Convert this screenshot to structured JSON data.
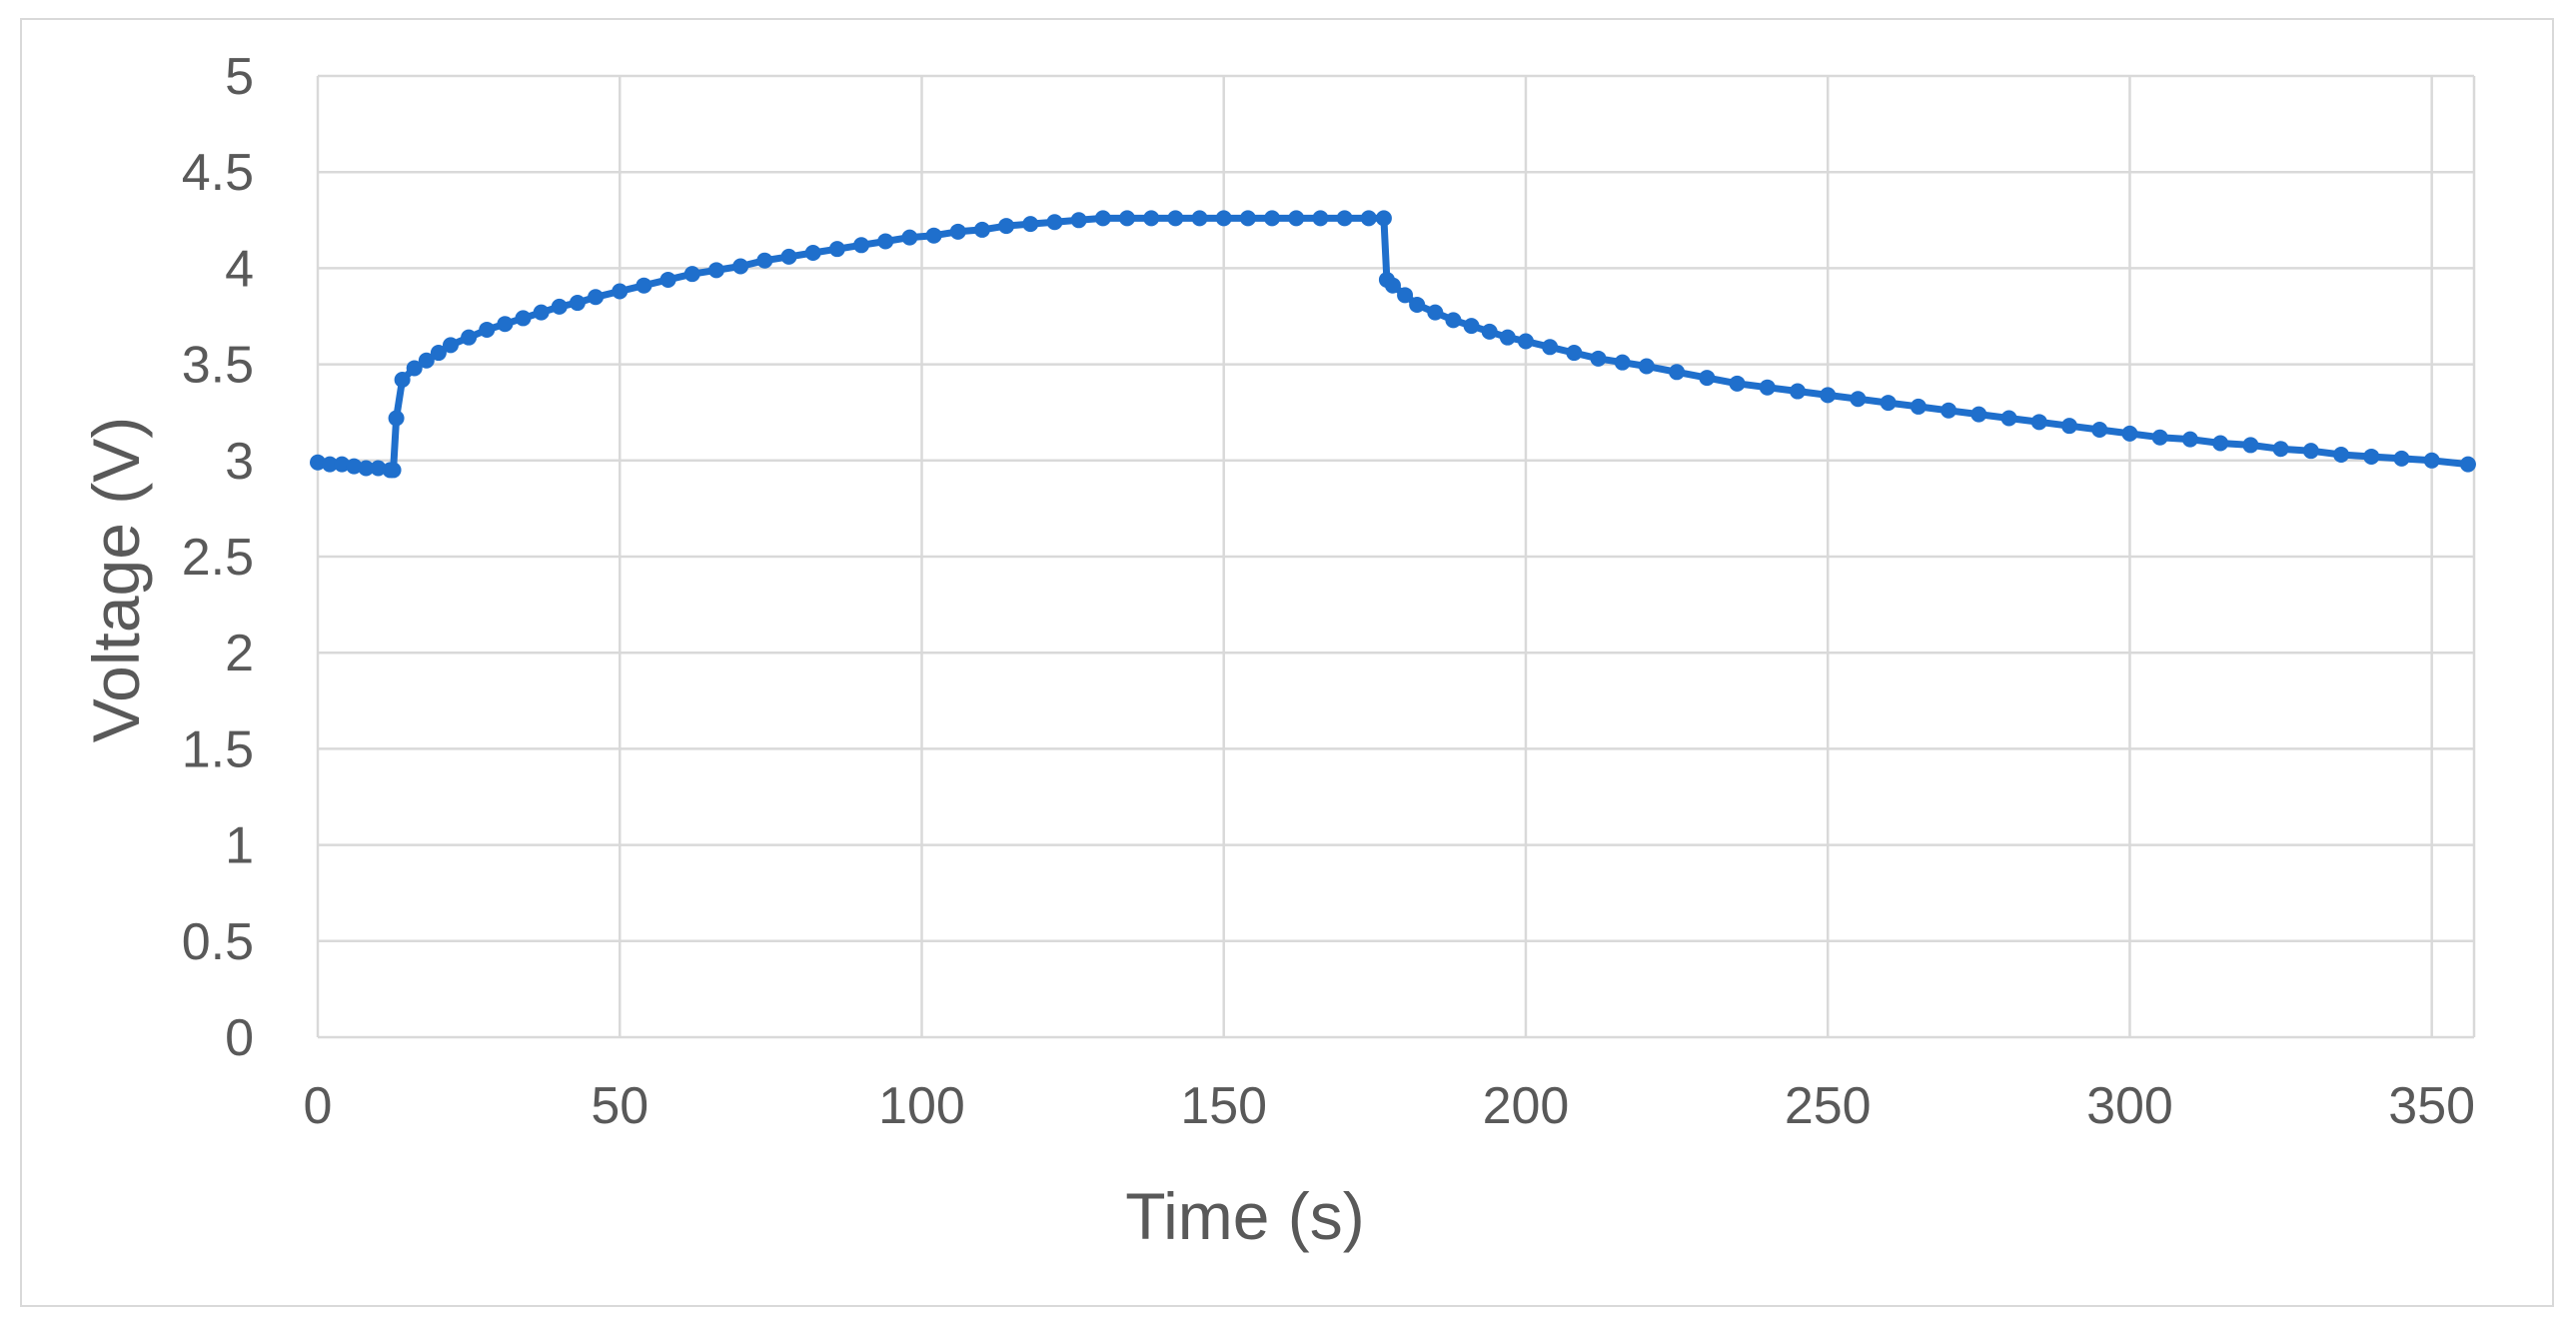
{
  "chart_data": {
    "type": "line",
    "markers": true,
    "xlabel": "Time (s)",
    "ylabel": "Voltage (V)",
    "xlim": [
      0,
      357
    ],
    "ylim": [
      0,
      5
    ],
    "xticks": [
      0,
      50,
      100,
      150,
      200,
      250,
      300,
      350
    ],
    "yticks": [
      0,
      0.5,
      1,
      1.5,
      2,
      2.5,
      3,
      3.5,
      4,
      4.5,
      5
    ],
    "grid": "both",
    "legend": "none",
    "series": [
      {
        "color": "#1f6fcc",
        "x": [
          0,
          2,
          4,
          6,
          8,
          10,
          12,
          12.5,
          13,
          14,
          16,
          18,
          20,
          22,
          25,
          28,
          31,
          34,
          37,
          40,
          43,
          46,
          50,
          54,
          58,
          62,
          66,
          70,
          74,
          78,
          82,
          86,
          90,
          94,
          98,
          102,
          106,
          110,
          114,
          118,
          122,
          126,
          130,
          134,
          138,
          142,
          146,
          150,
          154,
          158,
          162,
          166,
          170,
          174,
          176.5,
          177,
          178,
          180,
          182,
          185,
          188,
          191,
          194,
          197,
          200,
          204,
          208,
          212,
          216,
          220,
          225,
          230,
          235,
          240,
          245,
          250,
          255,
          260,
          265,
          270,
          275,
          280,
          285,
          290,
          295,
          300,
          305,
          310,
          315,
          320,
          325,
          330,
          335,
          340,
          345,
          350,
          356
        ],
        "y": [
          2.99,
          2.98,
          2.98,
          2.97,
          2.96,
          2.96,
          2.95,
          2.95,
          3.22,
          3.42,
          3.48,
          3.52,
          3.56,
          3.6,
          3.64,
          3.68,
          3.71,
          3.74,
          3.77,
          3.8,
          3.82,
          3.85,
          3.88,
          3.91,
          3.94,
          3.97,
          3.99,
          4.01,
          4.04,
          4.06,
          4.08,
          4.1,
          4.12,
          4.14,
          4.16,
          4.17,
          4.19,
          4.2,
          4.22,
          4.23,
          4.24,
          4.25,
          4.26,
          4.26,
          4.26,
          4.26,
          4.26,
          4.26,
          4.26,
          4.26,
          4.26,
          4.26,
          4.26,
          4.26,
          4.26,
          3.94,
          3.91,
          3.86,
          3.81,
          3.77,
          3.73,
          3.7,
          3.67,
          3.64,
          3.62,
          3.59,
          3.56,
          3.53,
          3.51,
          3.49,
          3.46,
          3.43,
          3.4,
          3.38,
          3.36,
          3.34,
          3.32,
          3.3,
          3.28,
          3.26,
          3.24,
          3.22,
          3.2,
          3.18,
          3.16,
          3.14,
          3.12,
          3.11,
          3.09,
          3.08,
          3.06,
          3.05,
          3.03,
          3.02,
          3.01,
          3.0,
          2.98
        ]
      }
    ]
  }
}
